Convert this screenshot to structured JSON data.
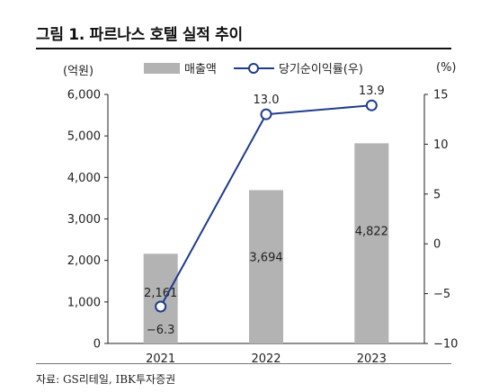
{
  "title": "그림 1. 파르나스 호텔 실적 추이",
  "source": "자료: GS리테일, IBK투자증권",
  "chart_data": {
    "type": "bar",
    "categories": [
      "2021",
      "2022",
      "2023"
    ],
    "series": [
      {
        "name": "매출액",
        "type": "bar",
        "axis": "left",
        "color": "#b3b3b3",
        "values": [
          2161,
          3694,
          4822
        ],
        "labels": [
          "2,161",
          "3,694",
          "4,822"
        ]
      },
      {
        "name": "당기순이익률(우)",
        "type": "line",
        "axis": "right",
        "color": "#1f3c8c",
        "values": [
          -6.3,
          13.0,
          13.9
        ],
        "labels": [
          "-6.3",
          "13.0",
          "13.9"
        ]
      }
    ],
    "left_axis": {
      "unit": "(억원)",
      "range": [
        0,
        6000
      ],
      "ticks": [
        "0",
        "1,000",
        "2,000",
        "3,000",
        "4,000",
        "5,000",
        "6,000"
      ]
    },
    "right_axis": {
      "unit": "(%)",
      "range": [
        -10,
        15
      ],
      "ticks": [
        "-10",
        "-5",
        "0",
        "5",
        "10",
        "15"
      ]
    },
    "legend_position": "top-center",
    "grid": false
  }
}
